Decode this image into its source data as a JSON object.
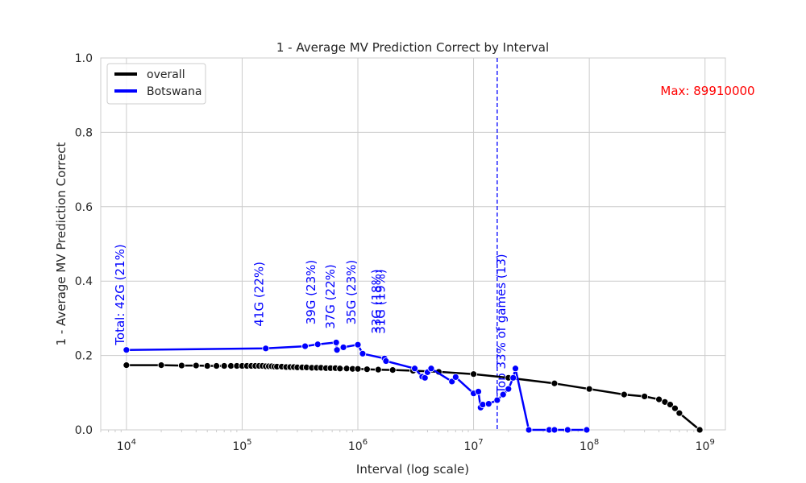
{
  "chart_data": {
    "type": "line",
    "title": "1 - Average MV Prediction Correct by Interval",
    "xlabel": "Interval (log scale)",
    "ylabel": "1 - Average MV Prediction Correct",
    "xscale": "log",
    "xlim": [
      6000,
      1500000000
    ],
    "ylim": [
      0,
      1.0
    ],
    "grid": true,
    "legend_position": "top-left",
    "x_ticks": [
      {
        "value": 10000,
        "base": "10",
        "exp": "4"
      },
      {
        "value": 100000,
        "base": "10",
        "exp": "5"
      },
      {
        "value": 1000000,
        "base": "10",
        "exp": "6"
      },
      {
        "value": 10000000,
        "base": "10",
        "exp": "7"
      },
      {
        "value": 100000000,
        "base": "10",
        "exp": "8"
      },
      {
        "value": 1000000000,
        "base": "10",
        "exp": "9"
      }
    ],
    "y_ticks": [
      "0.0",
      "0.2",
      "0.4",
      "0.6",
      "0.8",
      "1.0"
    ],
    "series": [
      {
        "name": "overall",
        "color": "#000000",
        "x": [
          10000,
          20000,
          30000,
          40000,
          50000,
          60000,
          70000,
          80000,
          90000,
          100000,
          110000,
          120000,
          130000,
          140000,
          150000,
          160000,
          170000,
          180000,
          190000,
          200000,
          220000,
          240000,
          260000,
          280000,
          300000,
          330000,
          360000,
          400000,
          440000,
          480000,
          530000,
          580000,
          640000,
          700000,
          800000,
          900000,
          1000000,
          1200000,
          1500000,
          2000000,
          3000000,
          5000000,
          10000000,
          20000000,
          50000000,
          100000000,
          200000000,
          300000000,
          400000000,
          450000000,
          500000000,
          550000000,
          600000000,
          900000000
        ],
        "y": [
          0.174,
          0.174,
          0.173,
          0.173,
          0.172,
          0.172,
          0.172,
          0.172,
          0.172,
          0.172,
          0.172,
          0.172,
          0.172,
          0.172,
          0.172,
          0.171,
          0.171,
          0.171,
          0.17,
          0.17,
          0.17,
          0.169,
          0.169,
          0.169,
          0.168,
          0.168,
          0.168,
          0.167,
          0.167,
          0.167,
          0.166,
          0.166,
          0.166,
          0.165,
          0.165,
          0.164,
          0.164,
          0.163,
          0.162,
          0.161,
          0.159,
          0.156,
          0.15,
          0.14,
          0.125,
          0.11,
          0.095,
          0.09,
          0.082,
          0.075,
          0.068,
          0.058,
          0.045,
          0.0
        ]
      },
      {
        "name": "Botswana",
        "color": "#0000ff",
        "x": [
          10000,
          160000,
          350000,
          450000,
          650000,
          660000,
          750000,
          1000000,
          1100000,
          1700000,
          1750000,
          3100000,
          3600000,
          3800000,
          4000000,
          4300000,
          6500000,
          7000000,
          10000000,
          11000000,
          11500000,
          12000000,
          13500000,
          16000000,
          18000000,
          20000000,
          22000000,
          23000000,
          30000000,
          45000000,
          50000000,
          65000000,
          95000000
        ],
        "y": [
          0.215,
          0.219,
          0.225,
          0.23,
          0.235,
          0.215,
          0.222,
          0.229,
          0.205,
          0.192,
          0.185,
          0.165,
          0.143,
          0.14,
          0.155,
          0.165,
          0.13,
          0.142,
          0.098,
          0.103,
          0.06,
          0.068,
          0.07,
          0.08,
          0.095,
          0.11,
          0.14,
          0.165,
          0.0,
          0.0,
          0.0,
          0.0,
          0.0
        ]
      }
    ],
    "annotations": [
      {
        "text": "Total: 42G (21%)",
        "x": 10000,
        "y": 0.215,
        "color": "#0000ff"
      },
      {
        "text": "41G (22%)",
        "x": 160000,
        "y": 0.265,
        "color": "#0000ff"
      },
      {
        "text": "39G (23%)",
        "x": 450000,
        "y": 0.27,
        "color": "#0000ff"
      },
      {
        "text": "37G (22%)",
        "x": 660000,
        "y": 0.258,
        "color": "#0000ff"
      },
      {
        "text": "35G (23%)",
        "x": 1000000,
        "y": 0.27,
        "color": "#0000ff"
      },
      {
        "text": "33G (18%)",
        "x": 1650000,
        "y": 0.245,
        "color": "#0000ff"
      },
      {
        "text": "31G (19%)",
        "x": 1800000,
        "y": 0.245,
        "color": "#0000ff"
      }
    ],
    "vline": {
      "x": 16000000,
      "color": "#0000ff",
      "label": "Top 33% of games (13)"
    },
    "max_label": {
      "text": "Max: 89910000",
      "color": "#ff0000"
    }
  }
}
